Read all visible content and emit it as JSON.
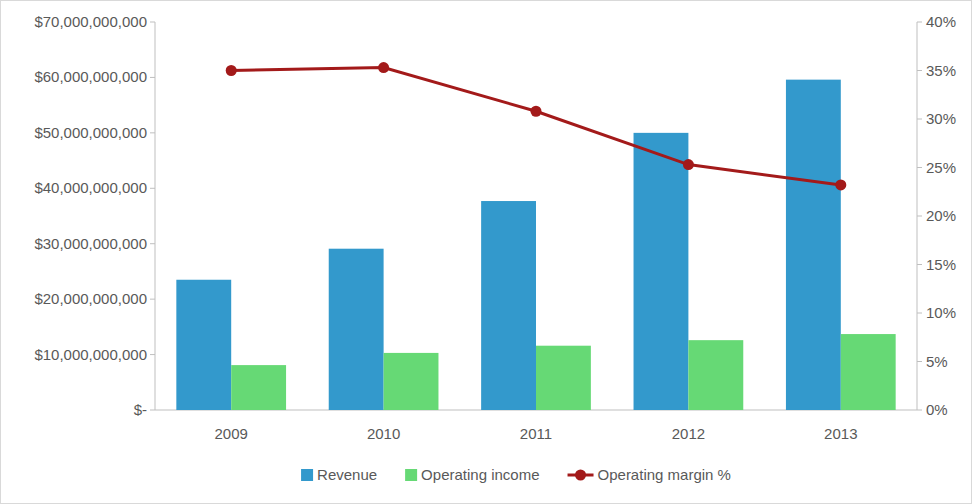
{
  "chart_data": {
    "type": "bar",
    "categories": [
      "2009",
      "2010",
      "2011",
      "2012",
      "2013"
    ],
    "series": [
      {
        "name": "Revenue",
        "type": "bar",
        "color": "#3399cc",
        "values": [
          23500000000,
          29100000000,
          37700000000,
          50000000000,
          59600000000
        ]
      },
      {
        "name": "Operating income",
        "type": "bar",
        "color": "#66d975",
        "values": [
          8100000000,
          10300000000,
          11600000000,
          12600000000,
          13700000000
        ]
      },
      {
        "name": "Operating margin %",
        "type": "line",
        "axis": "y2",
        "color": "#a31a1a",
        "marker": "circle",
        "line_style": "solid",
        "values": [
          35.0,
          35.3,
          30.8,
          25.3,
          23.2
        ]
      }
    ],
    "ylim": [
      0,
      70000000000
    ],
    "yticks": [
      {
        "value": 0,
        "label": "$-"
      },
      {
        "value": 10000000000,
        "label": "$10,000,000,000"
      },
      {
        "value": 20000000000,
        "label": "$20,000,000,000"
      },
      {
        "value": 30000000000,
        "label": "$30,000,000,000"
      },
      {
        "value": 40000000000,
        "label": "$40,000,000,000"
      },
      {
        "value": 50000000000,
        "label": "$50,000,000,000"
      },
      {
        "value": 60000000000,
        "label": "$60,000,000,000"
      },
      {
        "value": 70000000000,
        "label": "$70,000,000,000"
      }
    ],
    "y2lim": [
      0,
      40
    ],
    "y2ticks": [
      {
        "value": 0,
        "label": "0%"
      },
      {
        "value": 5,
        "label": "5%"
      },
      {
        "value": 10,
        "label": "10%"
      },
      {
        "value": 15,
        "label": "15%"
      },
      {
        "value": 20,
        "label": "20%"
      },
      {
        "value": 25,
        "label": "25%"
      },
      {
        "value": 30,
        "label": "30%"
      },
      {
        "value": 35,
        "label": "35%"
      },
      {
        "value": 40,
        "label": "40%"
      }
    ],
    "grid": false,
    "legend": "bottom"
  }
}
